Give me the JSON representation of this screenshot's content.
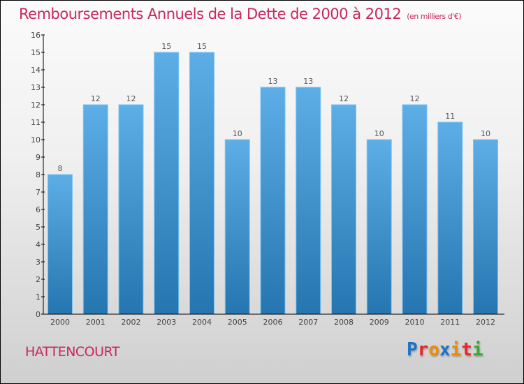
{
  "title": "Remboursements Annuels de la Dette de 2000 à 2012",
  "unit": "(en milliers d'€)",
  "city": "HATTENCOURT",
  "logo": {
    "letters": [
      "P",
      "r",
      "o",
      "x",
      "i",
      "t",
      "i"
    ],
    "colors": [
      "#1a73c8",
      "#e8262b",
      "#f08a00",
      "#1a73c8",
      "#f08a00",
      "#e8262b",
      "#3aa635"
    ]
  },
  "chart_data": {
    "type": "bar",
    "title": "Remboursements Annuels de la Dette de 2000 à 2012",
    "xlabel": "",
    "ylabel": "",
    "categories": [
      "2000",
      "2001",
      "2002",
      "2003",
      "2004",
      "2005",
      "2006",
      "2007",
      "2008",
      "2009",
      "2010",
      "2011",
      "2012"
    ],
    "values": [
      8,
      12,
      12,
      15,
      15,
      10,
      13,
      13,
      12,
      10,
      12,
      11,
      10
    ],
    "ylim": [
      0,
      16
    ],
    "yticks": [
      0,
      1,
      2,
      3,
      4,
      5,
      6,
      7,
      8,
      9,
      10,
      11,
      12,
      13,
      14,
      15,
      16
    ],
    "bar_color_top": "#5daee6",
    "bar_color_bottom": "#2575b0",
    "grid": false
  }
}
